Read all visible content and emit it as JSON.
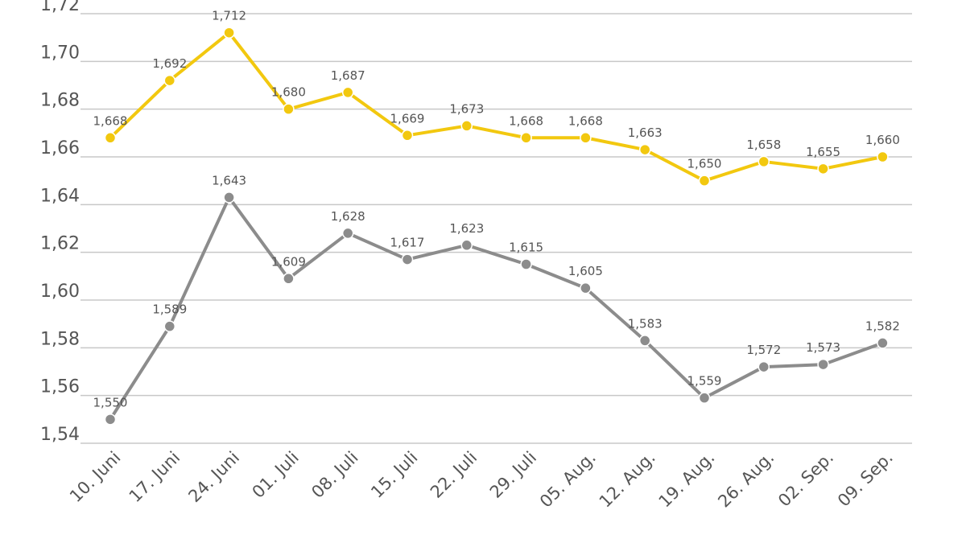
{
  "chart_data": {
    "type": "line",
    "title": "",
    "xlabel": "",
    "ylabel": "",
    "categories": [
      "10. Juni",
      "17. Juni",
      "24. Juni",
      "01. Juli",
      "08. Juli",
      "15. Juli",
      "22. Juli",
      "29. Juli",
      "05. Aug.",
      "12. Aug.",
      "19. Aug.",
      "26. Aug.",
      "02. Sep.",
      "09. Sep."
    ],
    "y_ticks": [
      "1,54",
      "1,56",
      "1,58",
      "1,60",
      "1,62",
      "1,64",
      "1,66",
      "1,68",
      "1,70",
      "1,72"
    ],
    "y_tick_values": [
      1.54,
      1.56,
      1.58,
      1.6,
      1.62,
      1.64,
      1.66,
      1.68,
      1.7,
      1.72
    ],
    "ylim": [
      1.54,
      1.72
    ],
    "grid": true,
    "series": [
      {
        "name": "series-yellow",
        "color": "#f2c80f",
        "values": [
          1.668,
          1.692,
          1.712,
          1.68,
          1.687,
          1.669,
          1.673,
          1.668,
          1.668,
          1.663,
          1.65,
          1.658,
          1.655,
          1.66
        ],
        "labels": [
          "1,668",
          "1,692",
          "1,712",
          "1,680",
          "1,687",
          "1,669",
          "1,673",
          "1,668",
          "1,668",
          "1,663",
          "1,650",
          "1,658",
          "1,655",
          "1,660"
        ]
      },
      {
        "name": "series-gray",
        "color": "#8c8c8c",
        "values": [
          1.55,
          1.589,
          1.643,
          1.609,
          1.628,
          1.617,
          1.623,
          1.615,
          1.605,
          1.583,
          1.559,
          1.572,
          1.573,
          1.582
        ],
        "labels": [
          "1,550",
          "1,589",
          "1,643",
          "1,609",
          "1,628",
          "1,617",
          "1,623",
          "1,615",
          "1,605",
          "1,583",
          "1,559",
          "1,572",
          "1,573",
          "1,582"
        ]
      }
    ]
  }
}
